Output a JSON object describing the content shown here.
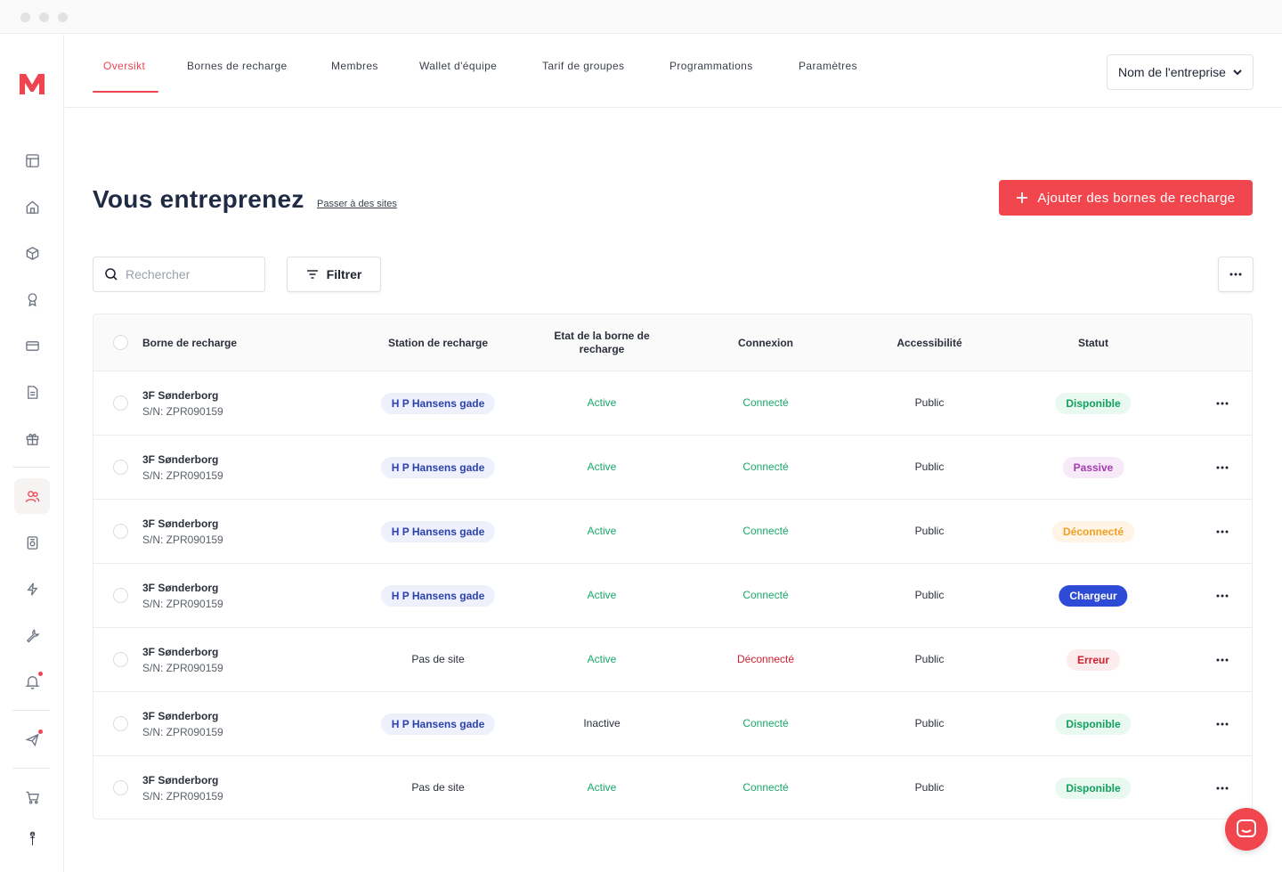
{
  "nav": {
    "tabs": [
      {
        "label": "Oversikt",
        "active": true
      },
      {
        "label": "Bornes de recharge"
      },
      {
        "label": "Membres"
      },
      {
        "label": "Wallet d'équipe"
      },
      {
        "label": "Tarif de groupes"
      },
      {
        "label": "Programmations"
      },
      {
        "label": "Paramètres"
      }
    ],
    "company_select": "Nom de l'entreprise"
  },
  "sidebar": {
    "icons": [
      "layout-icon",
      "home-icon",
      "box-icon",
      "award-icon",
      "card-icon",
      "document-icon",
      "gift-icon",
      "users-icon",
      "device-icon",
      "bolt-icon",
      "wrench-icon",
      "bell-icon",
      "send-icon",
      "cart-icon",
      "user-icon"
    ],
    "active": "users-icon"
  },
  "header": {
    "title": "Vous entreprenez",
    "switch_link": "Passer à des sites",
    "add_button": "Ajouter des bornes de recharge"
  },
  "toolbar": {
    "search_placeholder": "Rechercher",
    "filter_label": "Filtrer"
  },
  "table": {
    "columns": [
      "Borne de recharge",
      "Station de recharge",
      "Etat de la borne de recharge",
      "Connexion",
      "Accessibilité",
      "Statut"
    ],
    "rows": [
      {
        "name": "3F Sønderborg",
        "serial": "S/N: ZPR090159",
        "station": "H P Hansens gade",
        "station_pill": true,
        "state": "Active",
        "connection": "Connecté",
        "access": "Public",
        "status": "Disponible"
      },
      {
        "name": "3F Sønderborg",
        "serial": "S/N: ZPR090159",
        "station": "H P Hansens gade",
        "station_pill": true,
        "state": "Active",
        "connection": "Connecté",
        "access": "Public",
        "status": "Passive"
      },
      {
        "name": "3F Sønderborg",
        "serial": "S/N: ZPR090159",
        "station": "H P Hansens gade",
        "station_pill": true,
        "state": "Active",
        "connection": "Connecté",
        "access": "Public",
        "status": "Déconnecté"
      },
      {
        "name": "3F Sønderborg",
        "serial": "S/N: ZPR090159",
        "station": "H P Hansens gade",
        "station_pill": true,
        "state": "Active",
        "connection": "Connecté",
        "access": "Public",
        "status": "Chargeur"
      },
      {
        "name": "3F Sønderborg",
        "serial": "S/N: ZPR090159",
        "station": "Pas de site",
        "station_pill": false,
        "state": "Active",
        "connection": "Déconnecté",
        "access": "Public",
        "status": "Erreur"
      },
      {
        "name": "3F Sønderborg",
        "serial": "S/N: ZPR090159",
        "station": "H P Hansens gade",
        "station_pill": true,
        "state": "Inactive",
        "connection": "Connecté",
        "access": "Public",
        "status": "Disponible"
      },
      {
        "name": "3F Sønderborg",
        "serial": "S/N: ZPR090159",
        "station": "Pas de site",
        "station_pill": false,
        "state": "Active",
        "connection": "Connecté",
        "access": "Public",
        "status": "Disponible"
      }
    ]
  },
  "colors": {
    "accent": "#f2464f",
    "active_green": "#18a86b",
    "error_red": "#d0202e",
    "status_styles": {
      "Disponible": {
        "bg": "#e9f8f0",
        "fg": "#12a05e"
      },
      "Passive": {
        "bg": "#f7e9f8",
        "fg": "#a53bb0"
      },
      "Déconnecté": {
        "bg": "#fff4e6",
        "fg": "#f0a020"
      },
      "Chargeur": {
        "bg": "#2d4bd6",
        "fg": "#ffffff"
      },
      "Erreur": {
        "bg": "#fdecee",
        "fg": "#d0202e"
      }
    }
  }
}
